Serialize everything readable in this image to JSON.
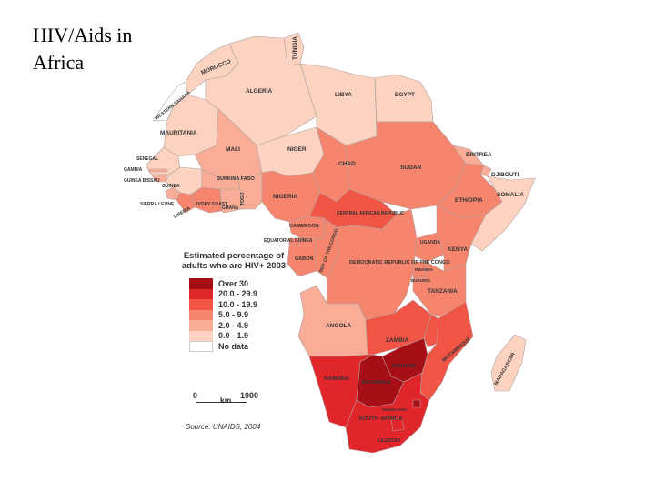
{
  "slide": {
    "title": "HIV/Aids in Africa"
  },
  "colors": {
    "over_30": "#a50f15",
    "20_29_9": "#e0262b",
    "10_19_9": "#f05545",
    "5_9_9": "#f6856e",
    "2_4_9": "#f9ad96",
    "0_1_9": "#fcd3c0",
    "no_data": "#ffffff"
  },
  "legend": {
    "title": "Estimated percentage of adults who are HIV+ 2003",
    "items": [
      {
        "label": "Over 30",
        "color": "#a50f15"
      },
      {
        "label": "20.0 - 29.9",
        "color": "#e0262b"
      },
      {
        "label": "10.0 - 19.9",
        "color": "#f05545"
      },
      {
        "label": "5.0 - 9.9",
        "color": "#f6856e"
      },
      {
        "label": "2.0 - 4.9",
        "color": "#f9ad96"
      },
      {
        "label": "0.0 - 1.9",
        "color": "#fcd3c0"
      },
      {
        "label": "No data",
        "color": "#ffffff"
      }
    ]
  },
  "scale": {
    "zero": "0",
    "unit": "km",
    "max": "1000"
  },
  "source": "Source: UNAIDS, 2004",
  "countries": {
    "tunisia": "TUNISIA",
    "morocco": "MOROCCO",
    "western_sahara": "WESTERN SAHARA",
    "algeria": "ALGERIA",
    "libya": "LIBYA",
    "egypt": "EGYPT",
    "mauritania": "MAURITANIA",
    "mali": "MALI",
    "niger": "NIGER",
    "chad": "CHAD",
    "sudan": "SUDAN",
    "eritrea": "ERITREA",
    "djibouti": "DJIBOUTI",
    "ethiopia": "ETHIOPIA",
    "somalia": "SOMALIA",
    "senegal": "SENEGAL",
    "gambia": "GAMBIA",
    "guinea_bissau": "GUINEA BISSAU",
    "guinea": "GUINEA",
    "sierra_leone": "SIERRA LEONE",
    "liberia": "LIBERIA",
    "cote_divoire": "IVORY COAST",
    "burkina_faso": "BURKINA FASO",
    "ghana": "GHANA",
    "togo": "TOGO",
    "nigeria": "NIGERIA",
    "car": "CENTRAL AFRICAN REPUBLIC",
    "cameroon": "CAMEROON",
    "equatorial_guinea": "EQUATORIAL GUINEA",
    "gabon": "GABON",
    "congo": "REP. OF THE CONGO",
    "drc": "DEMOCRATIC REPUBLIC OF THE CONGO",
    "uganda": "UGANDA",
    "kenya": "KENYA",
    "rwanda": "RWANDA",
    "burundi": "BURUNDI",
    "tanzania": "TANZANIA",
    "angola": "ANGOLA",
    "zambia": "ZAMBIA",
    "zimbabwe": "ZIMBABWE",
    "mozambique": "MOZAMBIQUE",
    "madagascar": "MADAGASCAR",
    "namibia": "NAMIBIA",
    "botswana": "BOTSWANA",
    "swaziland": "SWAZILAND",
    "south_africa": "SOUTH AFRICA",
    "lesotho": "LESOTHO"
  }
}
